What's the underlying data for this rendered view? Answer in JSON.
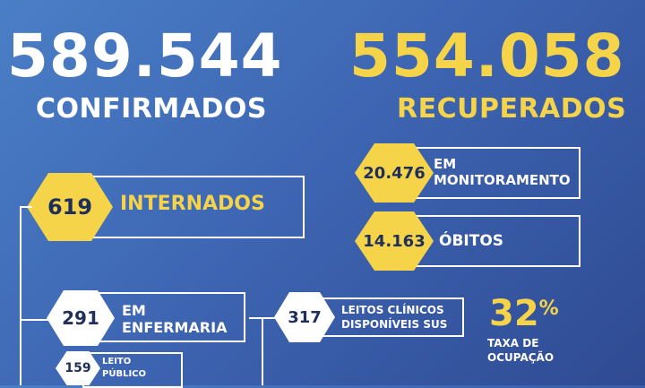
{
  "confirmed": {
    "value": "589.544",
    "label": "CONFIRMADOS"
  },
  "recovered": {
    "value": "554.058",
    "label": "RECUPERADOS"
  },
  "monitoring": {
    "value": "20.476",
    "label_line1": "EM",
    "label_line2": "MONITORAMENTO"
  },
  "deaths": {
    "value": "14.163",
    "label": "ÓBITOS"
  },
  "hospitalized": {
    "value": "619",
    "label": "INTERNADOS"
  },
  "ward": {
    "value": "291",
    "label_line1": "EM",
    "label_line2": "ENFERMARIA"
  },
  "public_bed": {
    "value": "159",
    "label_line1": "LEITO",
    "label_line2": "PÚBLICO"
  },
  "clinical_beds": {
    "value": "317",
    "label_line1": "LEITOS CLÍNICOS",
    "label_line2": "DISPONÍVEIS SUS"
  },
  "occupancy": {
    "value": "32",
    "unit": "%",
    "label_line1": "TAXA DE",
    "label_line2": "OCUPAÇÃO"
  },
  "colors": {
    "yellow": "#f5d44a",
    "white": "#ffffff",
    "navy": "#1f2f5c",
    "bg": "#3e66b3"
  }
}
